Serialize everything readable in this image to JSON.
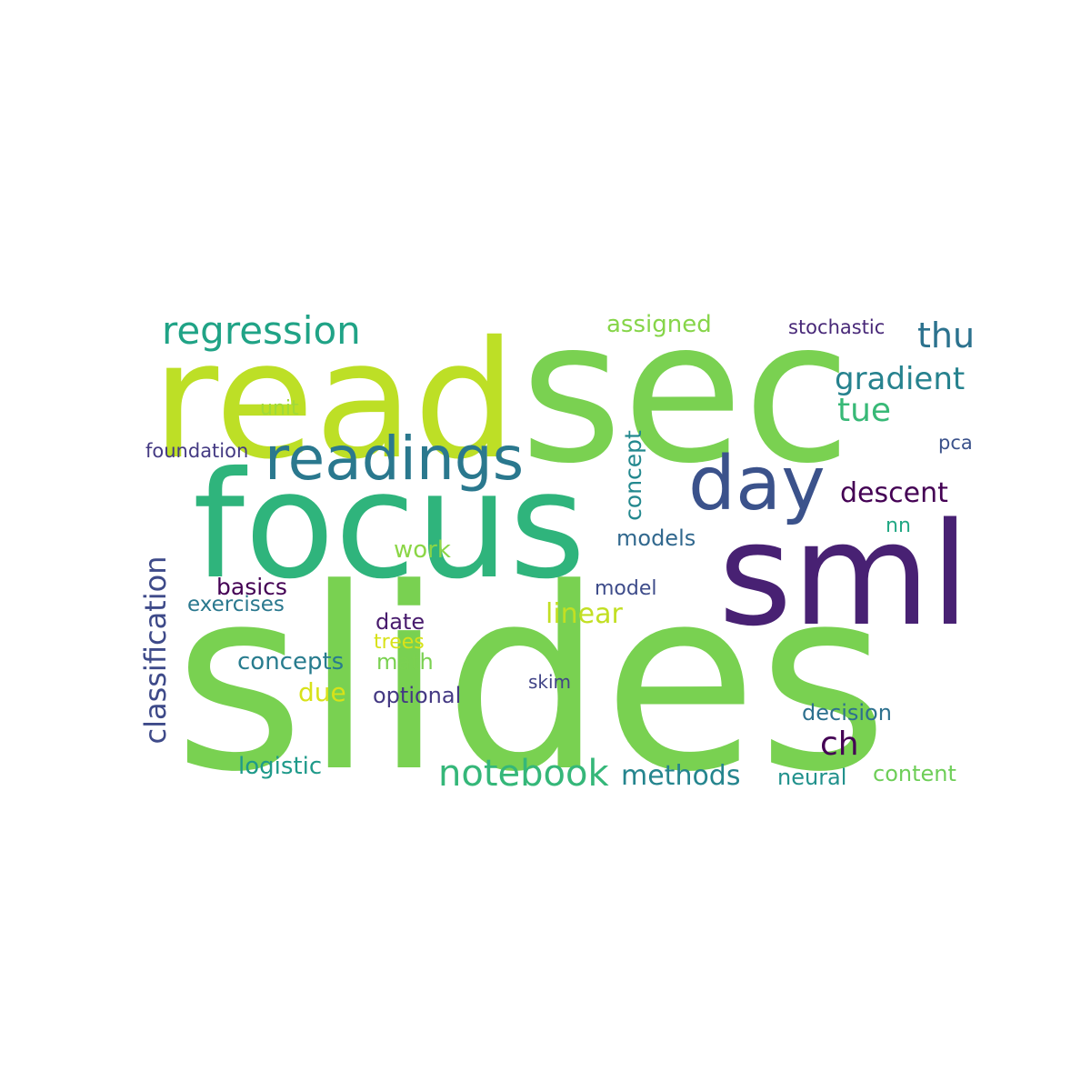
{
  "words": [
    {
      "id": "slides",
      "text": "slides",
      "color": "#79d151"
    },
    {
      "id": "sec",
      "text": "sec",
      "color": "#7ad151"
    },
    {
      "id": "read",
      "text": "read",
      "color": "#bddf26"
    },
    {
      "id": "focus",
      "text": "focus",
      "color": "#2fb47c"
    },
    {
      "id": "sml",
      "text": "sml",
      "color": "#482173"
    },
    {
      "id": "day",
      "text": "day",
      "color": "#3b528b"
    },
    {
      "id": "readings",
      "text": "readings",
      "color": "#2a788e"
    },
    {
      "id": "regression",
      "text": "regression",
      "color": "#20a386"
    },
    {
      "id": "notebook",
      "text": "notebook",
      "color": "#35b779"
    },
    {
      "id": "classification",
      "text": "classification",
      "color": "#3e4a89"
    },
    {
      "id": "thu",
      "text": "thu",
      "color": "#2c728e"
    },
    {
      "id": "gradient",
      "text": "gradient",
      "color": "#26828e"
    },
    {
      "id": "tue",
      "text": "tue",
      "color": "#38b977"
    },
    {
      "id": "descent",
      "text": "descent",
      "color": "#440154"
    },
    {
      "id": "ch",
      "text": "ch",
      "color": "#440154"
    },
    {
      "id": "methods",
      "text": "methods",
      "color": "#25858e"
    },
    {
      "id": "assigned",
      "text": "assigned",
      "color": "#86d549"
    },
    {
      "id": "concept",
      "text": "concept",
      "color": "#23888e"
    },
    {
      "id": "linear",
      "text": "linear",
      "color": "#c2df23"
    },
    {
      "id": "work",
      "text": "work",
      "color": "#8bd646"
    },
    {
      "id": "models",
      "text": "models",
      "color": "#31688e"
    },
    {
      "id": "logistic",
      "text": "logistic",
      "color": "#1f9a8a"
    },
    {
      "id": "neural",
      "text": "neural",
      "color": "#21918c"
    },
    {
      "id": "content",
      "text": "content",
      "color": "#6ece58"
    },
    {
      "id": "decision",
      "text": "decision",
      "color": "#2d708e"
    },
    {
      "id": "optional",
      "text": "optional",
      "color": "#443983"
    },
    {
      "id": "concepts",
      "text": "concepts",
      "color": "#287c8e"
    },
    {
      "id": "due",
      "text": "due",
      "color": "#d8e219"
    },
    {
      "id": "math",
      "text": "math",
      "color": "#7ad151"
    },
    {
      "id": "trees",
      "text": "trees",
      "color": "#d8e219"
    },
    {
      "id": "date",
      "text": "date",
      "color": "#481b6d"
    },
    {
      "id": "basics",
      "text": "basics",
      "color": "#440154"
    },
    {
      "id": "exercises",
      "text": "exercises",
      "color": "#2a788e"
    },
    {
      "id": "model",
      "text": "model",
      "color": "#3e4c8a"
    },
    {
      "id": "skim",
      "text": "skim",
      "color": "#414487"
    },
    {
      "id": "nn",
      "text": "nn",
      "color": "#22a884"
    },
    {
      "id": "stochastic",
      "text": "stochastic",
      "color": "#482878"
    },
    {
      "id": "pca",
      "text": "pca",
      "color": "#3b528b"
    },
    {
      "id": "unit",
      "text": "unit",
      "color": "#a0da39"
    },
    {
      "id": "foundation",
      "text": "foundation",
      "color": "#443a83"
    }
  ]
}
